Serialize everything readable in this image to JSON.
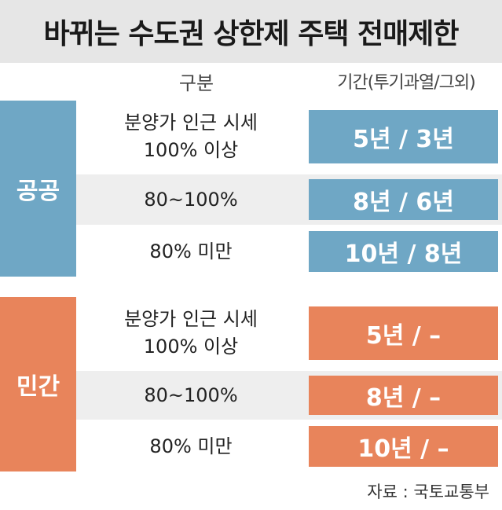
{
  "title": "바뀌는 수도권 상한제 주택 전매제한",
  "header": {
    "category": "구분",
    "period": "기간(투기과열/그외)"
  },
  "colors": {
    "public": "#6fa7c5",
    "private": "#e8845b",
    "title_bg": "#e6e6e6",
    "row_shade": "#eeeeee"
  },
  "groups": [
    {
      "label": "공공",
      "rows": [
        {
          "desc": "분양가 인근 시세\n100% 이상",
          "value": "5년 / 3년"
        },
        {
          "desc": "80~100%",
          "value": "8년 / 6년"
        },
        {
          "desc": "80% 미만",
          "value": "10년 / 8년"
        }
      ]
    },
    {
      "label": "민간",
      "rows": [
        {
          "desc": "분양가 인근 시세\n100% 이상",
          "value": "5년 / –"
        },
        {
          "desc": "80~100%",
          "value": "8년 / –"
        },
        {
          "desc": "80% 미만",
          "value": "10년 / –"
        }
      ]
    }
  ],
  "source": "자료 : 국토교통부"
}
